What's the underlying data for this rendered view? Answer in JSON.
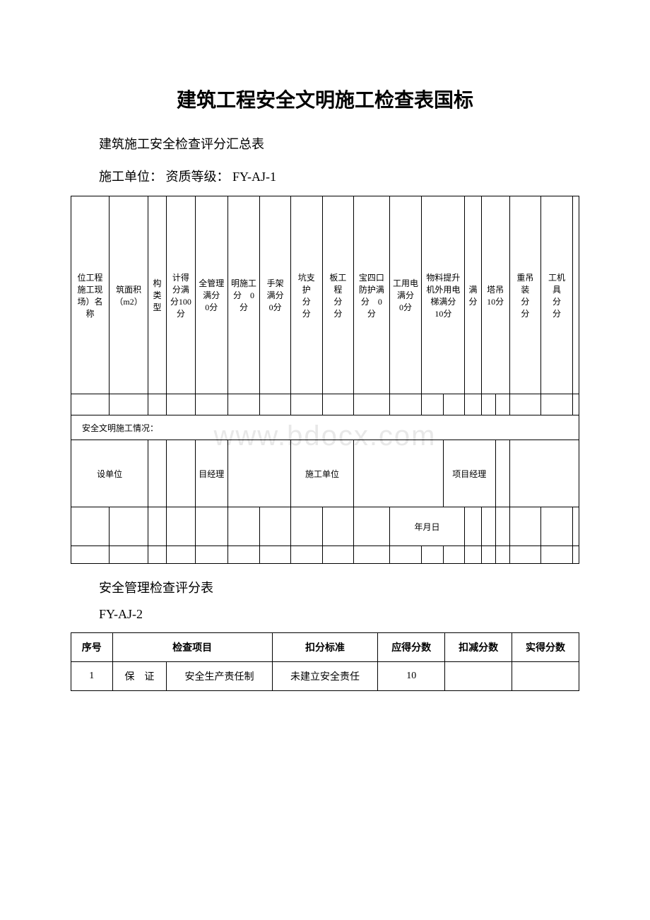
{
  "title": "建筑工程安全文明施工检查表国标",
  "subtitle": "建筑施工安全检查评分汇总表",
  "info_line": "施工单位： 资质等级： FY-AJ-1",
  "watermark": "www.bdocx.com",
  "table1": {
    "headers": {
      "col1": "位工程　施工现场）名称",
      "col2": "筑面积（m2）",
      "col3": "构类型",
      "col4": "计得分满分100分",
      "col5": "全管理满分　0分",
      "col6": "明施工　分　0分",
      "col7": "手架满分　0分",
      "col8": "坑支护　分　分",
      "col9": "板工程　分　分",
      "col10": "宝四口防护满分　0分",
      "col11": "工用电满分　0分",
      "col12": "物料提升机外用电梯满分　10分",
      "col13": "满分",
      "col14": "塔吊　10分",
      "col15": "重吊装　分　分",
      "col16": "工机具　分　分"
    },
    "situation_label": "安全文明施工情况：",
    "sign_row": {
      "col1": "设单位",
      "col2": "目经理",
      "col3": "施工单位",
      "col4": "项目经理"
    },
    "date_label": "年月日"
  },
  "section2_title": "安全管理检查评分表",
  "section2_code": "FY-AJ-2",
  "table2": {
    "headers": {
      "col1": "序号",
      "col2": "检查项目",
      "col3": "扣分标准",
      "col4": "应得分数",
      "col5": "扣减分数",
      "col6": "实得分数"
    },
    "rows": [
      {
        "seq": "1",
        "cat": "保　证",
        "item": "安全生产责任制",
        "standard": "未建立安全责任",
        "score": "10",
        "deduct": "",
        "actual": ""
      }
    ]
  }
}
